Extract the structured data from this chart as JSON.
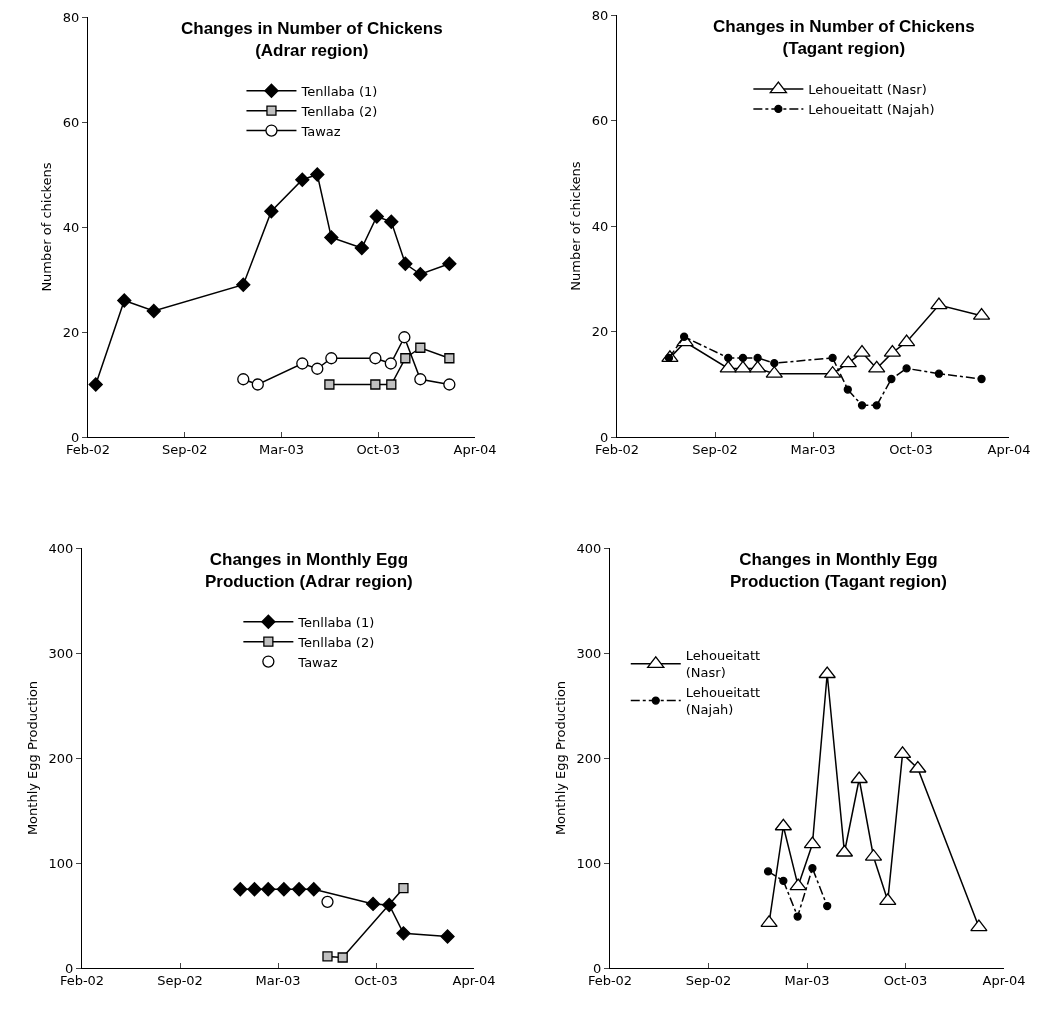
{
  "chart_data": [
    {
      "type": "line",
      "title": "Changes in Number of Chickens\n(Adrar region)",
      "ylabel": "Number of chickens",
      "xlim": [
        "2002-02-20",
        "2004-04-30"
      ],
      "xticks": [
        {
          "value": "2002-02-20",
          "label": "Feb-02"
        },
        {
          "value": "2002-09-08",
          "label": "Sep-02"
        },
        {
          "value": "2003-03-27",
          "label": "Mar-03"
        },
        {
          "value": "2003-10-13",
          "label": "Oct-03"
        },
        {
          "value": "2004-04-30",
          "label": "Apr-04"
        }
      ],
      "ylim": [
        0,
        80
      ],
      "yticks": [
        0,
        20,
        40,
        60,
        80
      ],
      "grid": false,
      "legend": "top",
      "series": [
        {
          "name": "Tenllaba (1)",
          "color": "#000000",
          "marker": "diamond",
          "line_style": "solid",
          "x": [
            "2002-03-08",
            "2002-05-06",
            "2002-07-06",
            "2003-01-07",
            "2003-03-06",
            "2003-05-09",
            "2003-06-09",
            "2003-07-08",
            "2003-09-09",
            "2003-10-10",
            "2003-11-09",
            "2003-12-08",
            "2004-01-08",
            "2004-03-08"
          ],
          "values": [
            10,
            26,
            24,
            29,
            43,
            49,
            50,
            38,
            36,
            42,
            41,
            33,
            31,
            33
          ]
        },
        {
          "name": "Tenllaba (2)",
          "color": "#000000",
          "colors": [
            "#c0c0c0",
            "#c0c0c0",
            "#c0c0c0",
            "#c0c0c0",
            "#c0c0c0",
            "#c0c0c0"
          ],
          "marker": "square",
          "line_style": "solid",
          "x": [
            "2003-07-04",
            "2003-10-07",
            "2003-11-09",
            "2003-12-08",
            "2004-01-08",
            "2004-03-08"
          ],
          "values": [
            10,
            10,
            10,
            15,
            17,
            15
          ]
        },
        {
          "name": "Tawaz",
          "color": "#000000",
          "colors": [
            "#ffffff",
            "#ffffff",
            "#ffffff",
            "#ffffff",
            "#ffffff",
            "#ffffff",
            "#ffffff",
            "#ffffff",
            "#ffffff",
            "#ffffff"
          ],
          "marker": "circle",
          "line_style": "solid",
          "x": [
            "2003-01-07",
            "2003-02-06",
            "2003-05-09",
            "2003-06-09",
            "2003-07-08",
            "2003-10-07",
            "2003-11-08",
            "2003-12-06",
            "2004-01-08",
            "2004-03-08"
          ],
          "values": [
            11,
            10,
            14,
            13,
            15,
            15,
            14,
            19,
            11,
            10
          ]
        }
      ]
    },
    {
      "type": "line",
      "title": "Changes in Number of Chickens\n(Tagant region)",
      "ylabel": "Number of chickens",
      "xlim": [
        "2002-02-20",
        "2004-04-30"
      ],
      "xticks": [
        {
          "value": "2002-02-20",
          "label": "Feb-02"
        },
        {
          "value": "2002-09-08",
          "label": "Sep-02"
        },
        {
          "value": "2003-03-27",
          "label": "Mar-03"
        },
        {
          "value": "2003-10-13",
          "label": "Oct-03"
        },
        {
          "value": "2004-04-30",
          "label": "Apr-04"
        }
      ],
      "ylim": [
        0,
        80
      ],
      "yticks": [
        0,
        20,
        40,
        60,
        80
      ],
      "grid": false,
      "legend": "top",
      "series": [
        {
          "name": "Lehoueitatt (Nasr)",
          "color": "#000000",
          "colors": [
            "#ffffff",
            "#ffffff",
            "#ffffff",
            "#ffffff",
            "#ffffff",
            "#ffffff",
            "#ffffff",
            "#ffffff",
            "#ffffff",
            "#ffffff",
            "#ffffff",
            "#ffffff",
            "#ffffff",
            "#ffffff"
          ],
          "marker": "triangle",
          "line_style": "solid",
          "x": [
            "2002-06-08",
            "2002-07-09",
            "2002-10-05",
            "2002-11-04",
            "2002-12-04",
            "2003-01-07",
            "2003-05-06",
            "2003-06-07",
            "2003-07-05",
            "2003-08-04",
            "2003-09-05",
            "2003-10-04",
            "2003-12-09",
            "2004-03-05"
          ],
          "values": [
            15,
            18,
            13,
            13,
            13,
            12,
            12,
            14,
            16,
            13,
            16,
            18,
            25,
            23
          ]
        },
        {
          "name": "Lehoueitatt (Najah)",
          "color": "#000000",
          "marker": "circle",
          "line_style": "dashdot",
          "x": [
            "2002-06-06",
            "2002-07-07",
            "2002-10-05",
            "2002-11-04",
            "2002-12-04",
            "2003-01-07",
            "2003-05-06",
            "2003-06-06",
            "2003-07-05",
            "2003-08-04",
            "2003-09-03",
            "2003-10-04",
            "2003-12-09",
            "2004-03-05"
          ],
          "values": [
            15,
            19,
            15,
            15,
            15,
            14,
            15,
            9,
            6,
            6,
            11,
            13,
            12,
            11
          ]
        }
      ]
    },
    {
      "type": "line",
      "title": "Changes in Monthly Egg\nProduction (Adrar region)",
      "ylabel": "Monthly Egg Production",
      "xlim": [
        "2002-02-20",
        "2004-04-30"
      ],
      "xticks": [
        {
          "value": "2002-02-20",
          "label": "Feb-02"
        },
        {
          "value": "2002-09-08",
          "label": "Sep-02"
        },
        {
          "value": "2003-03-27",
          "label": "Mar-03"
        },
        {
          "value": "2003-10-13",
          "label": "Oct-03"
        },
        {
          "value": "2004-04-30",
          "label": "Apr-04"
        }
      ],
      "ylim": [
        0,
        400
      ],
      "yticks": [
        0,
        100,
        200,
        300,
        400
      ],
      "grid": false,
      "legend": "top",
      "series": [
        {
          "name": "Tenllaba (1)",
          "color": "#000000",
          "marker": "diamond",
          "line_style": "solid",
          "x": [
            "2003-01-09",
            "2003-02-07",
            "2003-03-07",
            "2003-04-08",
            "2003-05-09",
            "2003-06-08",
            "2003-10-07",
            "2003-11-09",
            "2003-12-08",
            "2004-03-07"
          ],
          "values": [
            75,
            75,
            75,
            75,
            75,
            75,
            61,
            60,
            33,
            30
          ]
        },
        {
          "name": "Tenllaba (2)",
          "color": "#000000",
          "colors": [
            "#c0c0c0",
            "#c0c0c0",
            "#c0c0c0"
          ],
          "marker": "square",
          "line_style": "solid",
          "x": [
            "2003-07-06",
            "2003-08-06",
            "2003-12-08"
          ],
          "values": [
            11,
            10,
            76
          ]
        },
        {
          "name": "Tawaz",
          "color": "#000000",
          "colors": [
            "#ffffff"
          ],
          "marker": "circle",
          "line_style": "none",
          "x": [
            "2003-07-06"
          ],
          "values": [
            63
          ]
        }
      ]
    },
    {
      "type": "line",
      "title": "Changes in Monthly Egg\nProduction (Tagant region)",
      "ylabel": "Monthly Egg Production",
      "xlim": [
        "2002-02-20",
        "2004-04-30"
      ],
      "xticks": [
        {
          "value": "2002-02-20",
          "label": "Feb-02"
        },
        {
          "value": "2002-09-08",
          "label": "Sep-02"
        },
        {
          "value": "2003-03-27",
          "label": "Mar-03"
        },
        {
          "value": "2003-10-13",
          "label": "Oct-03"
        },
        {
          "value": "2004-04-30",
          "label": "Apr-04"
        }
      ],
      "ylim": [
        0,
        400
      ],
      "yticks": [
        0,
        100,
        200,
        300,
        400
      ],
      "grid": false,
      "legend": "top left",
      "series": [
        {
          "name": "Lehoueitatt\n(Nasr)",
          "color": "#000000",
          "colors": [
            "#ffffff",
            "#ffffff",
            "#ffffff",
            "#ffffff",
            "#ffffff",
            "#ffffff",
            "#ffffff",
            "#ffffff",
            "#ffffff",
            "#ffffff",
            "#ffffff",
            "#ffffff"
          ],
          "marker": "triangle",
          "line_style": "solid",
          "x": [
            "2003-01-09",
            "2003-02-07",
            "2003-03-09",
            "2003-04-07",
            "2003-05-07",
            "2003-06-11",
            "2003-07-11",
            "2003-08-09",
            "2003-09-07",
            "2003-10-07",
            "2003-11-07",
            "2004-03-10"
          ],
          "values": [
            43,
            135,
            78,
            118,
            280,
            110,
            180,
            106,
            64,
            204,
            190,
            39
          ]
        },
        {
          "name": "Lehoueitatt\n(Najah)",
          "color": "#000000",
          "marker": "circle",
          "line_style": "dashdot",
          "x": [
            "2003-01-07",
            "2003-02-07",
            "2003-03-08",
            "2003-04-07",
            "2003-05-07"
          ],
          "values": [
            92,
            83,
            49,
            95,
            59
          ]
        }
      ]
    }
  ]
}
